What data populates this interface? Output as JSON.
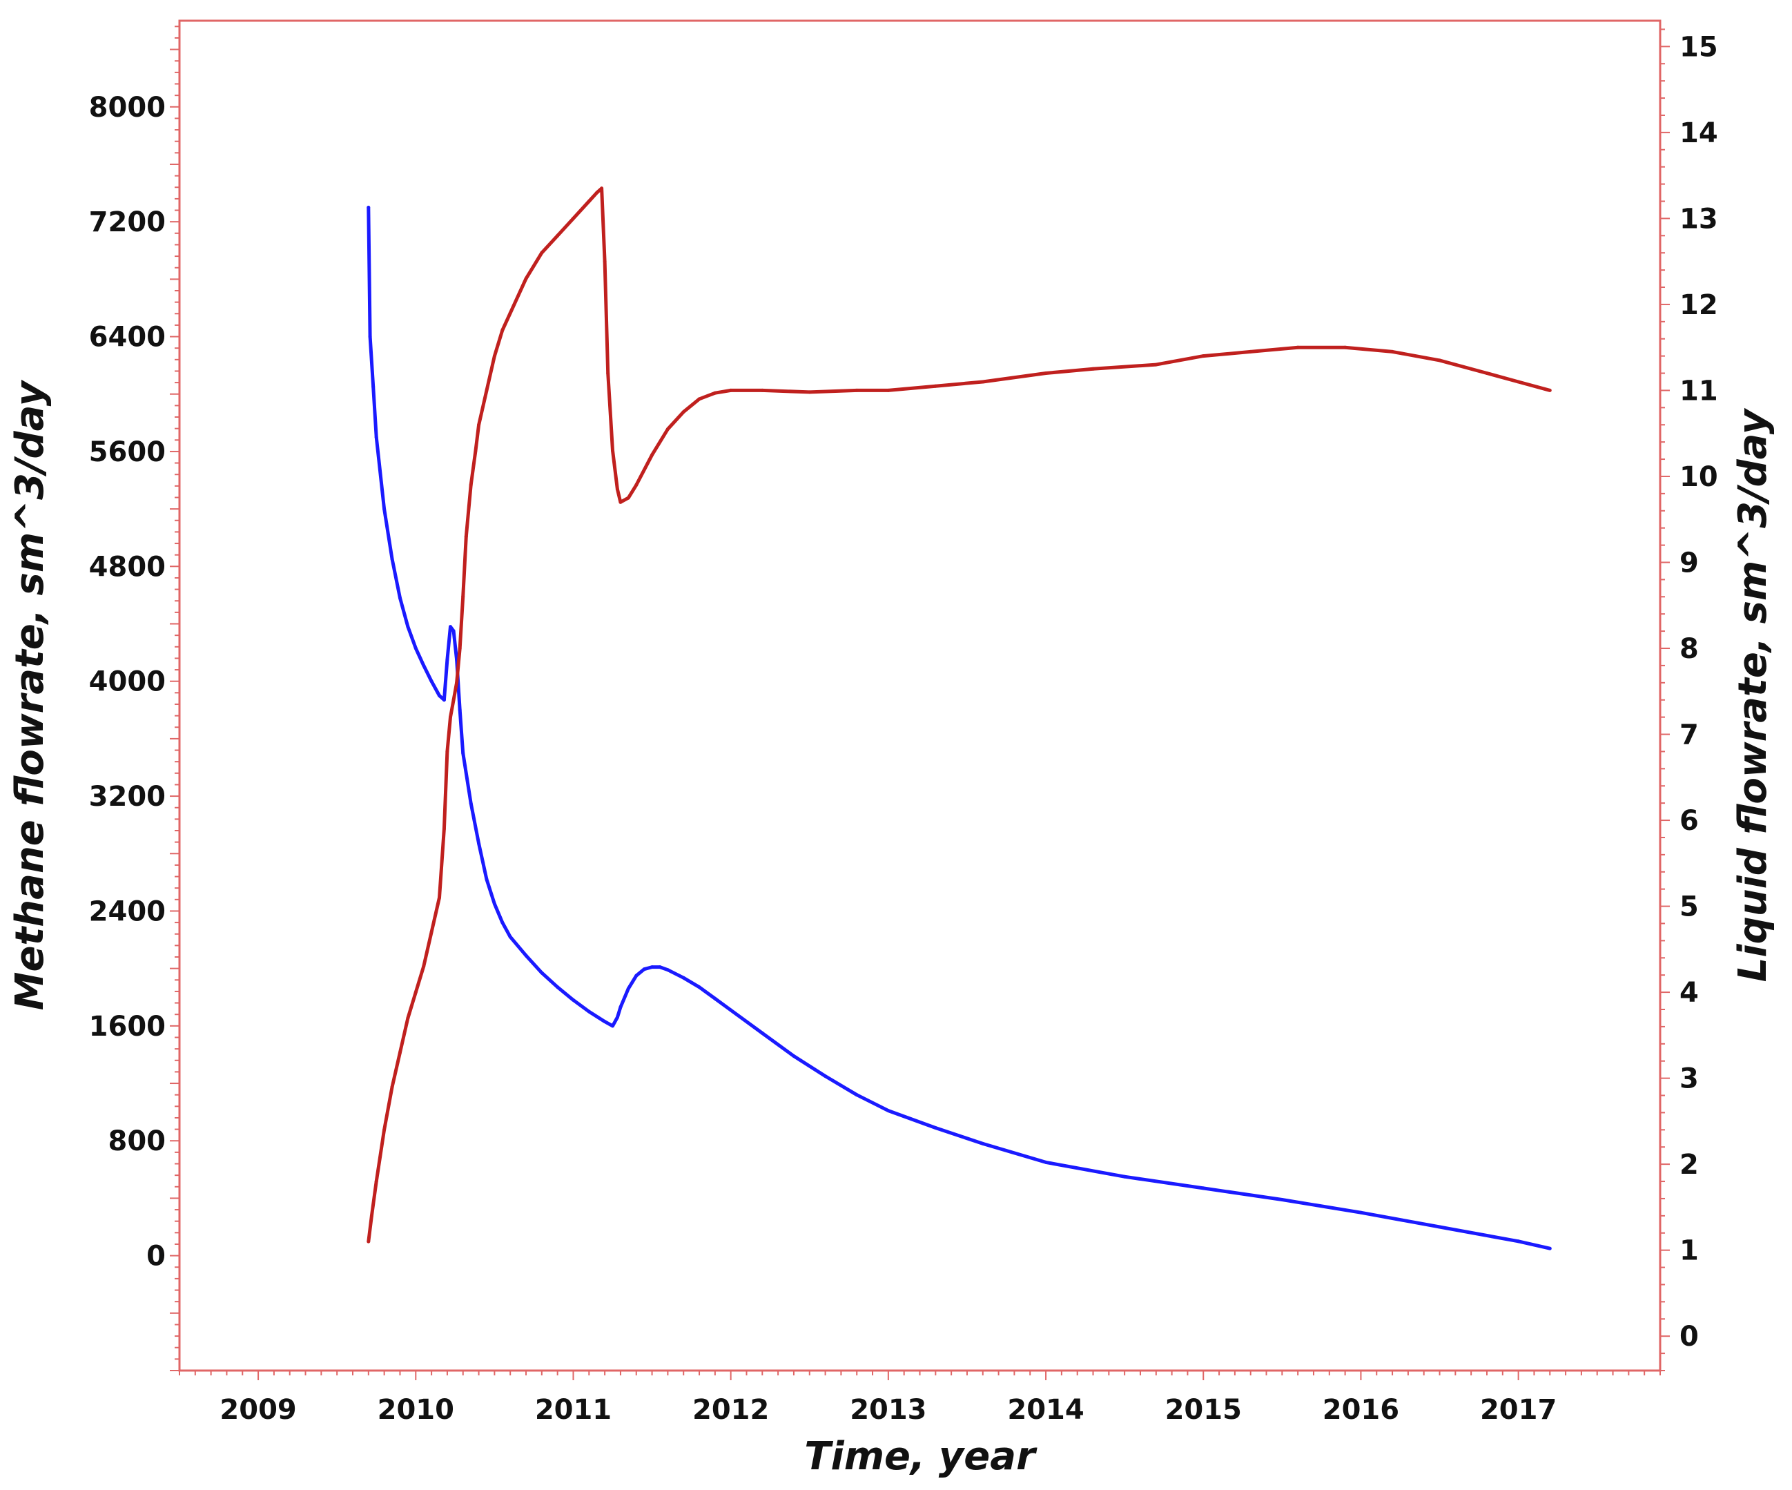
{
  "chart_data": {
    "type": "line",
    "title": "",
    "xlabel": "Time, year",
    "ylabel_left": "Methane flowrate, sm^3/day",
    "ylabel_right": "Liquid flowrate, sm^3/day",
    "xlim": [
      2008.5,
      2017.9
    ],
    "ylim_left": [
      -800,
      8600
    ],
    "ylim_right": [
      -0.4,
      15.3
    ],
    "x_ticks": [
      2009,
      2010,
      2011,
      2012,
      2013,
      2014,
      2015,
      2016,
      2017
    ],
    "y_left_ticks": [
      0,
      800,
      1600,
      2400,
      3200,
      4000,
      4800,
      5600,
      6400,
      7200,
      8000
    ],
    "y_right_ticks": [
      0,
      1,
      2,
      3,
      4,
      5,
      6,
      7,
      8,
      9,
      10,
      11,
      12,
      13,
      14,
      15
    ],
    "grid": false,
    "frame_color": "#e06666",
    "series": [
      {
        "axis": "left",
        "color": "#1a1aff",
        "x": [
          2009.7,
          2009.71,
          2009.73,
          2009.75,
          2009.8,
          2009.85,
          2009.9,
          2009.95,
          2010.0,
          2010.05,
          2010.1,
          2010.15,
          2010.18,
          2010.2,
          2010.22,
          2010.24,
          2010.26,
          2010.28,
          2010.3,
          2010.35,
          2010.4,
          2010.45,
          2010.5,
          2010.55,
          2010.6,
          2010.7,
          2010.8,
          2010.9,
          2011.0,
          2011.1,
          2011.2,
          2011.25,
          2011.28,
          2011.3,
          2011.35,
          2011.4,
          2011.45,
          2011.5,
          2011.55,
          2011.6,
          2011.7,
          2011.8,
          2011.9,
          2012.0,
          2012.2,
          2012.4,
          2012.6,
          2012.8,
          2013.0,
          2013.3,
          2013.6,
          2014.0,
          2014.5,
          2015.0,
          2015.5,
          2016.0,
          2016.5,
          2017.0,
          2017.2
        ],
        "values": [
          7300,
          6400,
          6050,
          5700,
          5200,
          4850,
          4580,
          4380,
          4230,
          4110,
          4000,
          3900,
          3870,
          4150,
          4380,
          4350,
          4150,
          3800,
          3500,
          3150,
          2870,
          2620,
          2450,
          2320,
          2220,
          2090,
          1970,
          1870,
          1780,
          1700,
          1630,
          1600,
          1660,
          1730,
          1860,
          1950,
          1995,
          2010,
          2010,
          1990,
          1935,
          1870,
          1790,
          1710,
          1550,
          1390,
          1250,
          1120,
          1010,
          890,
          780,
          650,
          550,
          470,
          390,
          300,
          200,
          100,
          50
        ]
      },
      {
        "axis": "right",
        "color": "#c0201e",
        "x": [
          2009.7,
          2009.72,
          2009.75,
          2009.8,
          2009.85,
          2009.9,
          2009.95,
          2010.0,
          2010.05,
          2010.1,
          2010.15,
          2010.18,
          2010.2,
          2010.22,
          2010.24,
          2010.26,
          2010.28,
          2010.3,
          2010.32,
          2010.35,
          2010.38,
          2010.4,
          2010.45,
          2010.5,
          2010.55,
          2010.6,
          2010.7,
          2010.8,
          2010.9,
          2011.0,
          2011.1,
          2011.15,
          2011.18,
          2011.2,
          2011.22,
          2011.25,
          2011.28,
          2011.3,
          2011.35,
          2011.4,
          2011.5,
          2011.6,
          2011.7,
          2011.8,
          2011.9,
          2012.0,
          2012.2,
          2012.5,
          2012.8,
          2013.0,
          2013.3,
          2013.6,
          2014.0,
          2014.3,
          2014.7,
          2015.0,
          2015.3,
          2015.6,
          2015.9,
          2016.2,
          2016.5,
          2016.8,
          2017.0,
          2017.2
        ],
        "values": [
          1.1,
          1.4,
          1.8,
          2.4,
          2.9,
          3.3,
          3.7,
          4.0,
          4.3,
          4.7,
          5.1,
          5.9,
          6.8,
          7.2,
          7.4,
          7.6,
          8.0,
          8.6,
          9.3,
          9.9,
          10.3,
          10.6,
          11.0,
          11.4,
          11.7,
          11.9,
          12.3,
          12.6,
          12.8,
          13.0,
          13.2,
          13.3,
          13.35,
          12.5,
          11.2,
          10.3,
          9.85,
          9.7,
          9.75,
          9.9,
          10.25,
          10.55,
          10.75,
          10.9,
          10.97,
          11.0,
          11.0,
          10.98,
          11.0,
          11.0,
          11.05,
          11.1,
          11.2,
          11.25,
          11.3,
          11.4,
          11.45,
          11.5,
          11.5,
          11.45,
          11.35,
          11.2,
          11.1,
          11.0
        ]
      }
    ]
  }
}
